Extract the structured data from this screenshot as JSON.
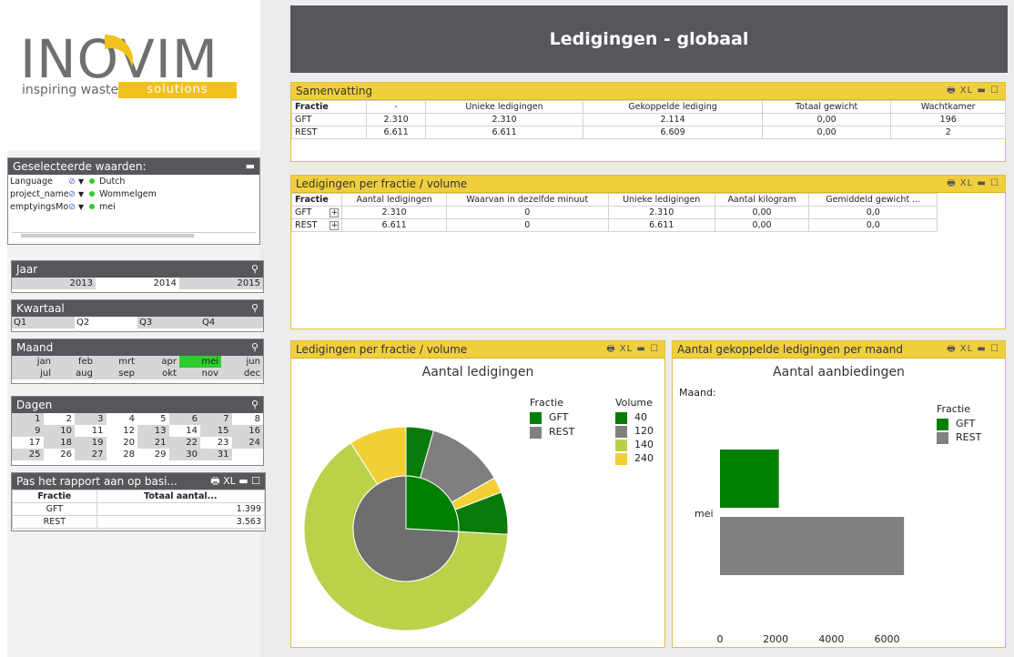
{
  "logo": {
    "brand": "INOVIM",
    "tagline": "inspiring waste",
    "badge": "solutions"
  },
  "header": {
    "title": "Ledigingen - globaal"
  },
  "selected": {
    "title": "Geselecteerde waarden:",
    "rows": [
      {
        "field": "Language",
        "value": "Dutch"
      },
      {
        "field": "project_name",
        "value": "Wommelgem"
      },
      {
        "field": "emptyingsMo",
        "value": "mei"
      }
    ]
  },
  "jaar": {
    "title": "Jaar",
    "items": [
      "2013",
      "2014",
      "2015"
    ]
  },
  "kwartaal": {
    "title": "Kwartaal",
    "items": [
      "Q1",
      "Q2",
      "Q3",
      "Q4"
    ]
  },
  "maand": {
    "title": "Maand",
    "rows": [
      [
        "jan",
        "feb",
        "mrt",
        "apr",
        "mei",
        "jun"
      ],
      [
        "jul",
        "aug",
        "sep",
        "okt",
        "nov",
        "dec"
      ]
    ],
    "selected": "mei"
  },
  "dagen": {
    "title": "Dagen",
    "rows": [
      [
        "1",
        "2",
        "3",
        "4",
        "5",
        "6",
        "7",
        "8"
      ],
      [
        "9",
        "10",
        "11",
        "12",
        "13",
        "14",
        "15",
        "16"
      ],
      [
        "17",
        "18",
        "19",
        "20",
        "21",
        "22",
        "23",
        "24"
      ],
      [
        "25",
        "26",
        "27",
        "28",
        "29",
        "30",
        "31",
        ""
      ]
    ]
  },
  "rapport": {
    "title": "Pas het rapport aan op basi...",
    "headers": [
      "Fractie",
      "Totaal aantal..."
    ],
    "rows": [
      [
        "GFT",
        "1.399"
      ],
      [
        "REST",
        "3.563"
      ]
    ]
  },
  "summary": {
    "title": "Samenvatting",
    "headers": [
      "Fractie",
      "-",
      "Unieke ledigingen",
      "Gekoppelde lediging",
      "Totaal gewicht",
      "Wachtkamer"
    ],
    "rows": [
      [
        "GFT",
        "2.310",
        "2.310",
        "2.114",
        "0,00",
        "196"
      ],
      [
        "REST",
        "6.611",
        "6.611",
        "6.609",
        "0,00",
        "2"
      ]
    ]
  },
  "pervolume": {
    "title": "Ledigingen per fractie / volume",
    "headers": [
      "Fractie",
      "Aantal ledigingen",
      "Waarvan in dezelfde minuut",
      "Unieke ledigingen",
      "Aantal kilogram",
      "Gemiddeld gewicht ..."
    ],
    "rows": [
      [
        "GFT",
        "2.310",
        "0",
        "2.310",
        "0,00",
        "0,0"
      ],
      [
        "REST",
        "6.611",
        "0",
        "6.611",
        "0,00",
        "0,0"
      ]
    ]
  },
  "piepanel": {
    "title": "Ledigingen per fractie / volume",
    "chart_title": "Aantal ledigingen",
    "legend_fractie_title": "Fractie",
    "legend_volume_title": "Volume"
  },
  "barpanel": {
    "title": "Aantal gekoppelde ledigingen per maand",
    "chart_title": "Aantal aanbiedingen",
    "axis_title": "Maand:",
    "legend_title": "Fractie"
  },
  "colors": {
    "GFT": "#008000",
    "REST": "#808080",
    "v40": "#0a7a0a",
    "v120": "#7f7f7f",
    "v140": "#b9d24a",
    "v240": "#f2cf35",
    "header_bar": "#f0cf3e"
  },
  "chart_data": [
    {
      "type": "pie",
      "title": "Aantal ledigingen",
      "inner_ring": {
        "name": "Fractie",
        "labels": [
          "GFT",
          "REST"
        ],
        "values": [
          2310,
          6611
        ]
      },
      "outer_ring": {
        "name": "Volume",
        "labels": [
          "40",
          "120",
          "140",
          "240"
        ],
        "slices": [
          {
            "fractie": "GFT",
            "volume": "40",
            "value": 390
          },
          {
            "fractie": "GFT",
            "volume": "120",
            "value": 1100
          },
          {
            "fractie": "GFT",
            "volume": "240",
            "value": 220
          },
          {
            "fractie": "GFT",
            "volume": "40",
            "value": 600
          },
          {
            "fractie": "REST",
            "volume": "140",
            "value": 5800
          },
          {
            "fractie": "REST",
            "volume": "240",
            "value": 811
          }
        ]
      }
    },
    {
      "type": "bar",
      "orientation": "horizontal",
      "title": "Aantal aanbiedingen",
      "ylabel": "Maand:",
      "categories": [
        "mei"
      ],
      "series": [
        {
          "name": "GFT",
          "values": [
            2114
          ]
        },
        {
          "name": "REST",
          "values": [
            6609
          ]
        }
      ],
      "xlim": [
        0,
        6800
      ],
      "xticks": [
        "0",
        "2000",
        "4000",
        "6000"
      ]
    }
  ]
}
